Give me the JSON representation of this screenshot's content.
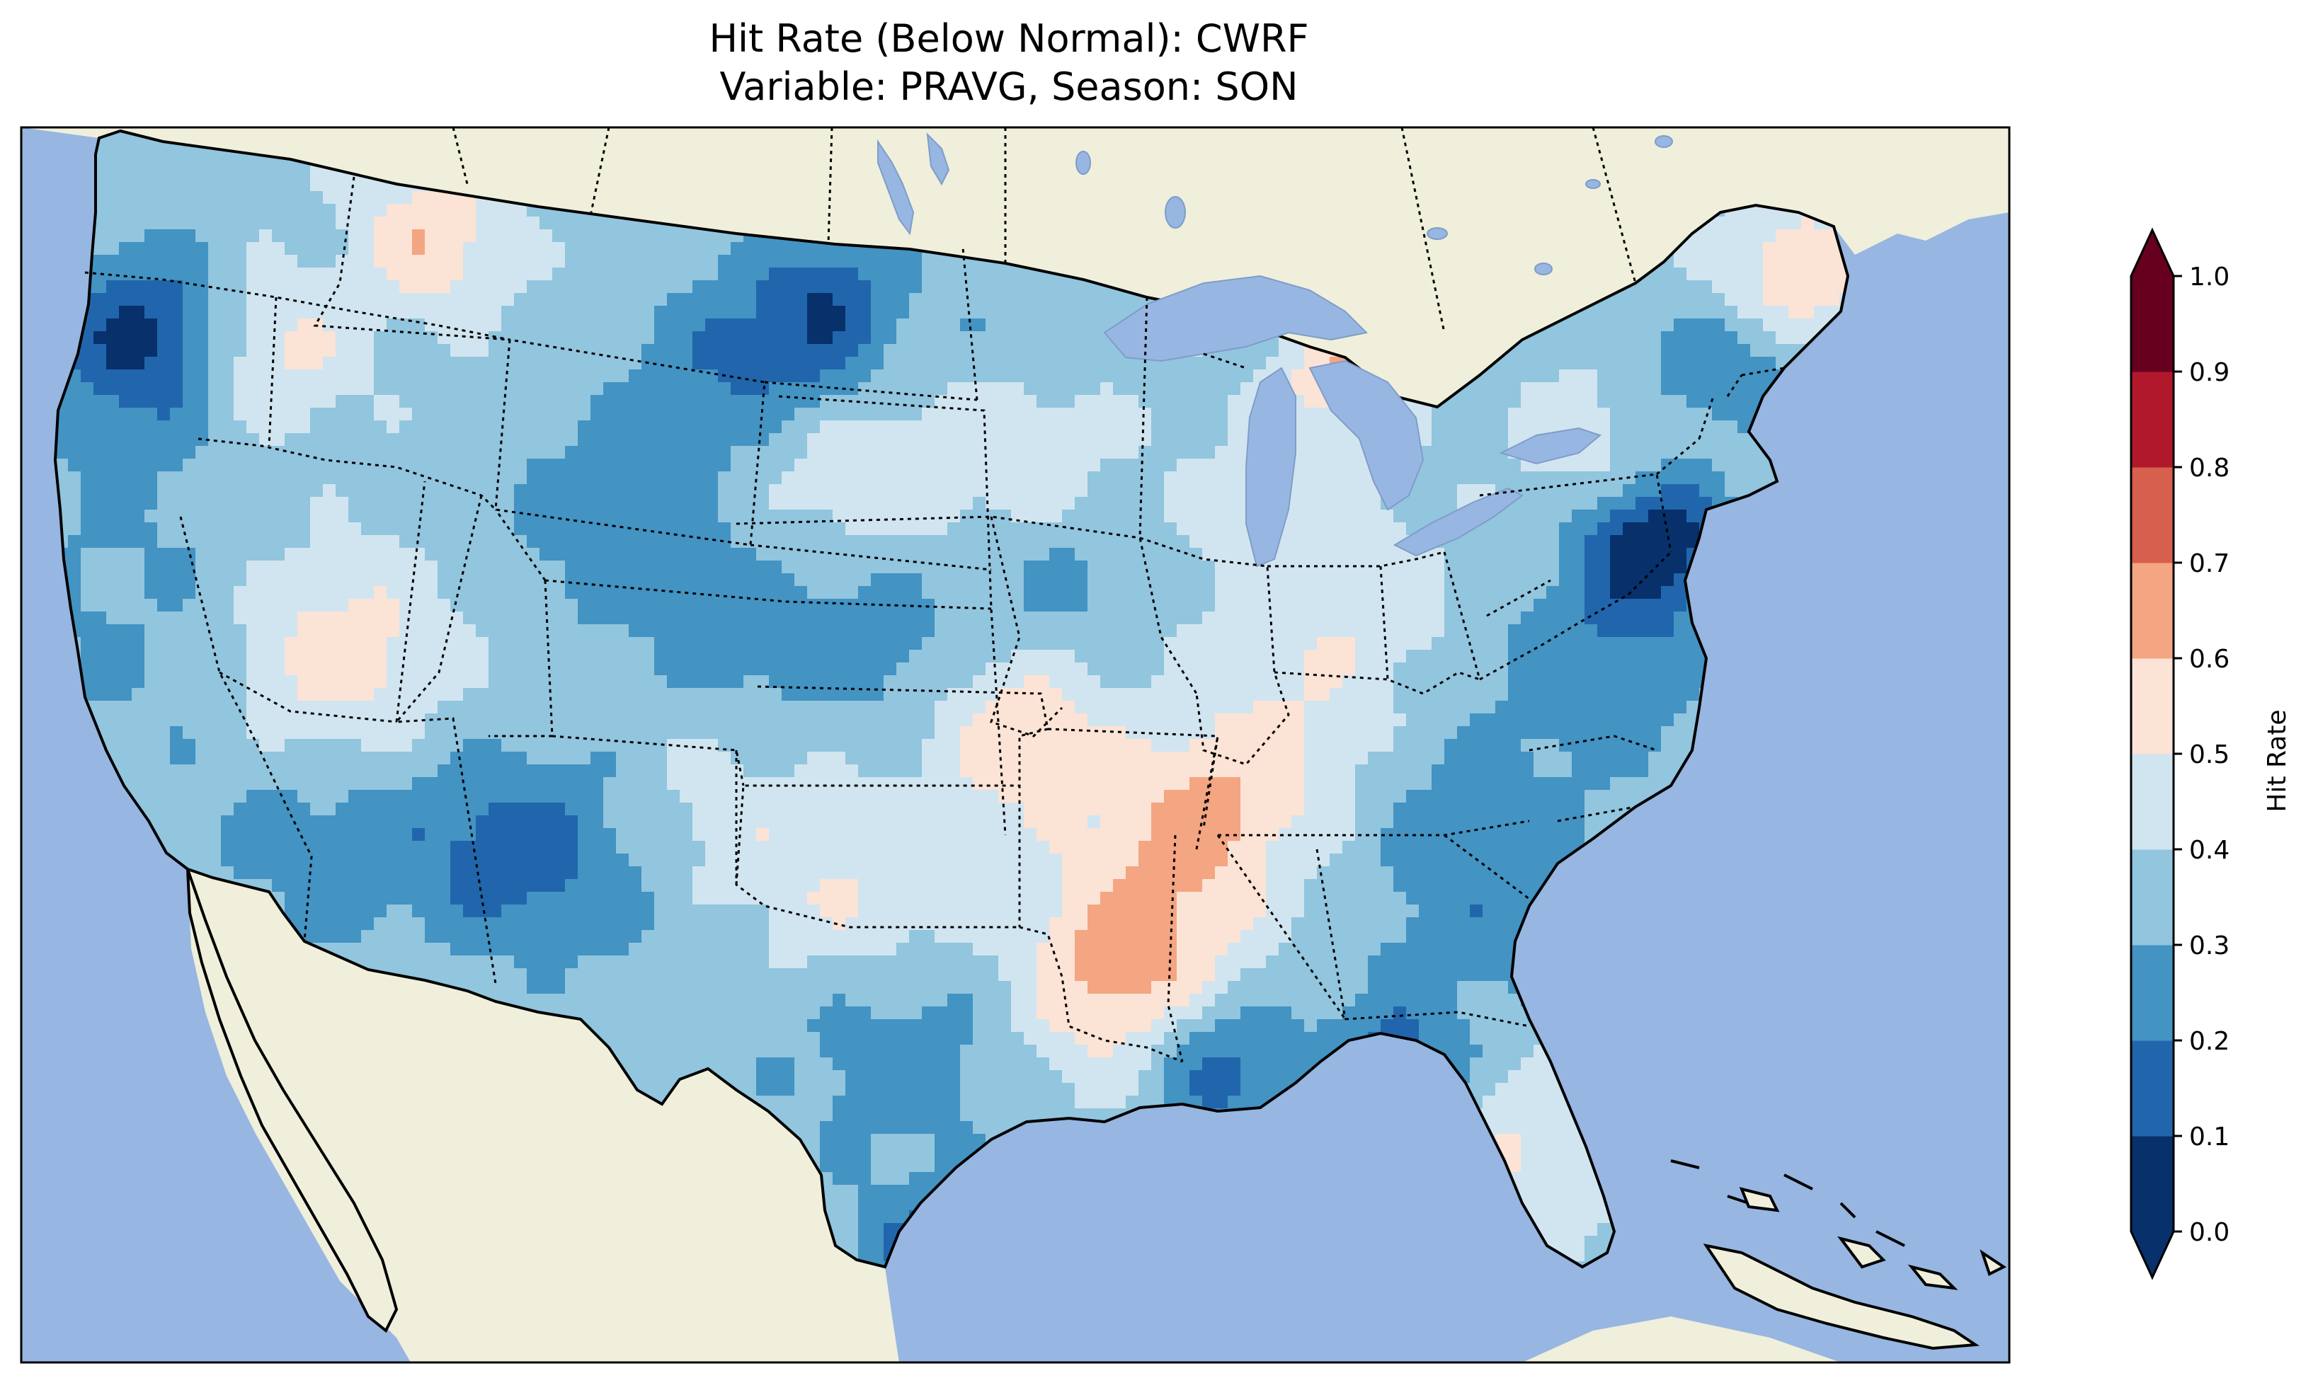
{
  "title": {
    "line1": "Hit Rate (Below Normal): CWRF",
    "line2": "Variable: PRAVG, Season: SON"
  },
  "colorbar": {
    "label": "Hit Rate",
    "ticks": [
      "0.0",
      "0.1",
      "0.2",
      "0.3",
      "0.4",
      "0.5",
      "0.6",
      "0.7",
      "0.8",
      "0.9",
      "1.0"
    ],
    "bins": [
      {
        "range": "0.0-0.1",
        "color": "#08306b"
      },
      {
        "range": "0.1-0.2",
        "color": "#2166ac"
      },
      {
        "range": "0.2-0.3",
        "color": "#4393c3"
      },
      {
        "range": "0.3-0.4",
        "color": "#92c5de"
      },
      {
        "range": "0.4-0.5",
        "color": "#d1e5f0"
      },
      {
        "range": "0.5-0.6",
        "color": "#fbe3d6"
      },
      {
        "range": "0.6-0.7",
        "color": "#f4a582"
      },
      {
        "range": "0.7-0.8",
        "color": "#d6604d"
      },
      {
        "range": "0.8-0.9",
        "color": "#b2182b"
      },
      {
        "range": "0.9-1.0",
        "color": "#67001f"
      }
    ],
    "extend": "both"
  },
  "map": {
    "ocean_color": "#97b6e1",
    "land_color": "#efefdb",
    "region": "CONUS",
    "features": [
      "coastline",
      "state-borders",
      "great-lakes"
    ]
  }
}
